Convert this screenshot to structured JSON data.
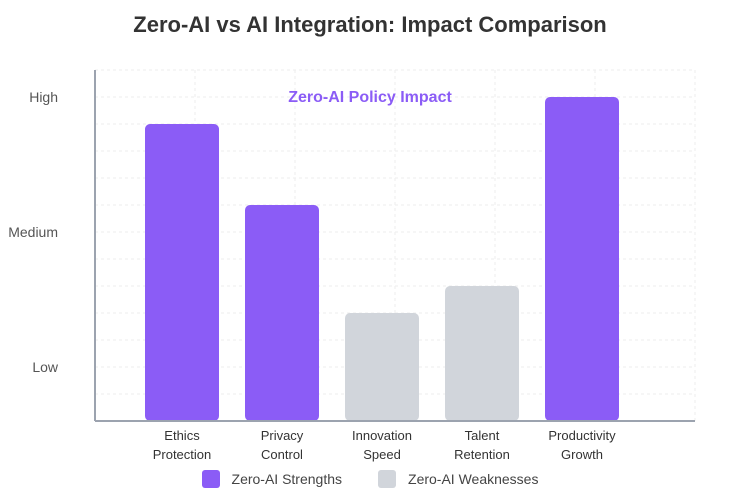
{
  "chart_data": {
    "type": "bar",
    "title": "Zero-AI vs AI Integration: Impact Comparison",
    "subtitle": "Zero-AI Policy Impact",
    "categories": [
      [
        "Ethics",
        "Protection"
      ],
      [
        "Privacy",
        "Control"
      ],
      [
        "Innovation",
        "Speed"
      ],
      [
        "Talent",
        "Retention"
      ],
      [
        "Productivity",
        "Growth"
      ]
    ],
    "values": [
      11,
      8,
      4,
      5,
      12
    ],
    "bar_series": [
      "Zero-AI Strengths",
      "Zero-AI Strengths",
      "Zero-AI Weaknesses",
      "Zero-AI Weaknesses",
      "Zero-AI Strengths"
    ],
    "y_ticks": [
      {
        "value": 2,
        "label": "Low"
      },
      {
        "value": 7,
        "label": "Medium"
      },
      {
        "value": 12,
        "label": "High"
      }
    ],
    "ylim": [
      0,
      13
    ],
    "xlabel": "",
    "ylabel": "",
    "grid": true,
    "legend_position": "bottom",
    "series": [
      {
        "name": "Zero-AI Strengths",
        "color": "#8b5cf6"
      },
      {
        "name": "Zero-AI Weaknesses",
        "color": "#d1d5db"
      }
    ]
  },
  "colors": {
    "title": "#333333",
    "subtitle": "#8b5cf6",
    "axis": "#9ca3af",
    "grid": "#eeeeee",
    "tick_text": "#555555"
  }
}
